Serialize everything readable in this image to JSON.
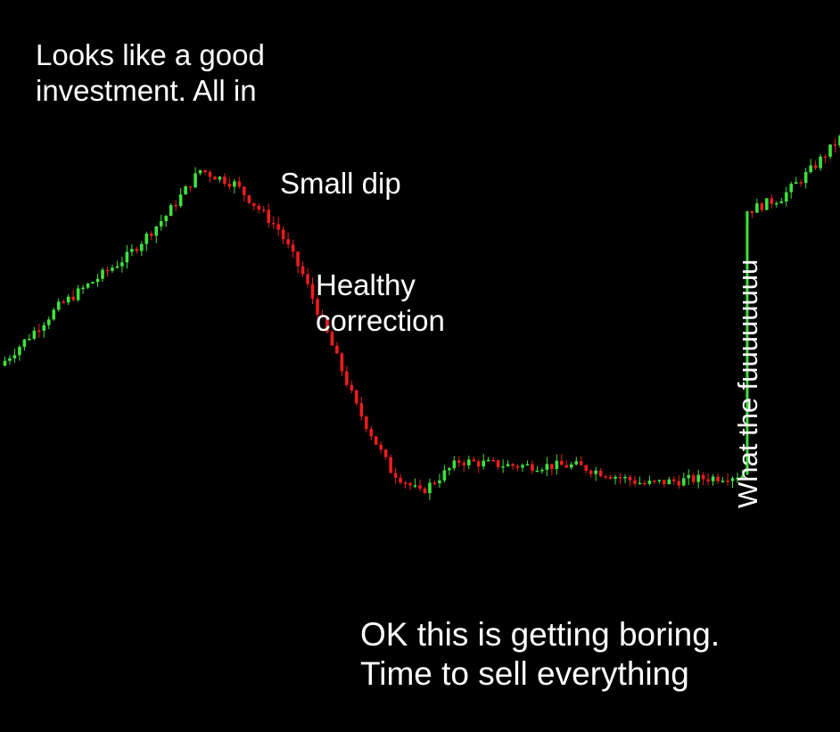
{
  "captions": {
    "all_in_line1": "Looks like a good",
    "all_in_line2": "investment. All in",
    "small_dip": "Small dip",
    "healthy_line1": "Healthy",
    "healthy_line2": "correction",
    "boring_line1": "OK this is getting boring.",
    "boring_line2": "Time to sell everything",
    "spike": "What the fuuuuuuuu"
  },
  "colors": {
    "background": "#000000",
    "up": "#3ee23e",
    "down": "#ee1c1c",
    "text": "#ffffff"
  },
  "chart_data": {
    "type": "candlestick",
    "title": "",
    "xlabel": "",
    "ylabel": "",
    "ylim": [
      0,
      100
    ],
    "price_path": [
      {
        "step": 0,
        "price": 49
      },
      {
        "step": 12,
        "price": 62
      },
      {
        "step": 26,
        "price": 73
      },
      {
        "step": 34,
        "price": 82
      },
      {
        "step": 41,
        "price": 92
      },
      {
        "step": 48,
        "price": 89
      },
      {
        "step": 57,
        "price": 79
      },
      {
        "step": 62,
        "price": 69
      },
      {
        "step": 67,
        "price": 56
      },
      {
        "step": 73,
        "price": 40
      },
      {
        "step": 80,
        "price": 26
      },
      {
        "step": 86,
        "price": 21
      },
      {
        "step": 94,
        "price": 28
      },
      {
        "step": 105,
        "price": 27
      },
      {
        "step": 118,
        "price": 27
      },
      {
        "step": 132,
        "price": 23
      },
      {
        "step": 142,
        "price": 24
      },
      {
        "step": 152,
        "price": 25
      },
      {
        "step": 153,
        "price": 83
      },
      {
        "step": 160,
        "price": 86
      },
      {
        "step": 166,
        "price": 92
      },
      {
        "step": 172,
        "price": 99
      }
    ]
  }
}
